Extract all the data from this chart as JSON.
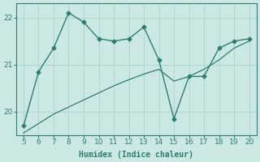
{
  "x": [
    5,
    6,
    7,
    8,
    9,
    10,
    11,
    12,
    13,
    14,
    15,
    16,
    17,
    18,
    19,
    20
  ],
  "y_main": [
    19.7,
    20.85,
    21.35,
    22.1,
    21.9,
    21.55,
    21.5,
    21.55,
    21.8,
    21.1,
    19.85,
    20.75,
    20.75,
    21.35,
    21.5,
    21.55
  ],
  "y_trend": [
    19.55,
    19.75,
    19.95,
    20.1,
    20.25,
    20.4,
    20.55,
    20.68,
    20.8,
    20.9,
    20.65,
    20.75,
    20.9,
    21.1,
    21.35,
    21.5
  ],
  "line_color": "#2e7d72",
  "bg_color": "#cce8e4",
  "grid_color": "#b0d8d3",
  "xlabel": "Humidex (Indice chaleur)",
  "xlim": [
    4.5,
    20.5
  ],
  "ylim": [
    19.5,
    22.3
  ],
  "yticks": [
    20,
    21,
    22
  ],
  "xticks": [
    5,
    6,
    7,
    8,
    9,
    10,
    11,
    12,
    13,
    14,
    15,
    16,
    17,
    18,
    19,
    20
  ]
}
